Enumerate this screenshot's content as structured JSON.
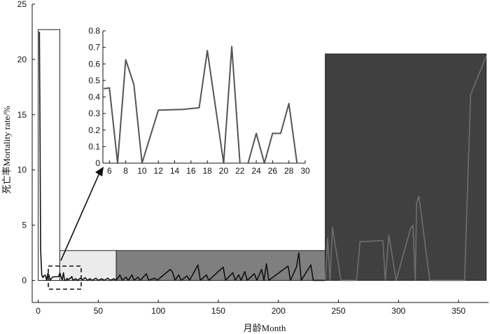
{
  "chart_data": [
    {
      "type": "line",
      "xlabel": "月龄Month",
      "ylabel": "死亡率Mortality rate/%",
      "xlim": [
        -5,
        375
      ],
      "ylim": [
        -2,
        25
      ],
      "xticks": [
        0,
        50,
        100,
        150,
        200,
        250,
        300,
        350
      ],
      "yticks": [
        0,
        5,
        10,
        15,
        20,
        25
      ],
      "colors": {
        "line": "#111111",
        "region1_fill": "#ffffff",
        "region2_fill": "#ebebeb",
        "region3_fill": "#7f7f7f",
        "region4_fill": "#404040",
        "region4_line": "#6e6e6e"
      },
      "regions": [
        {
          "x0": 0,
          "x1": 18,
          "top": 22.7,
          "style": "outline"
        },
        {
          "x0": 18,
          "x1": 65,
          "top": 2.7,
          "style": "light-gray"
        },
        {
          "x0": 65,
          "x1": 239,
          "top": 2.7,
          "style": "mid-gray"
        },
        {
          "x0": 239,
          "x1": 373,
          "top": 20.5,
          "style": "dark-gray"
        }
      ],
      "series": [
        {
          "points": [
            [
              1,
              22.5
            ],
            [
              1.5,
              12.8
            ],
            [
              2,
              2.8
            ],
            [
              3,
              0.45
            ],
            [
              4,
              0.25
            ],
            [
              5,
              0.45
            ],
            [
              6,
              0.45
            ],
            [
              7,
              0.0
            ],
            [
              8,
              0.62
            ],
            [
              9,
              0.47
            ],
            [
              10,
              0.0
            ],
            [
              12,
              0.32
            ],
            [
              16,
              0.33
            ],
            [
              17,
              0.34
            ],
            [
              18,
              0.68
            ],
            [
              20,
              0.0
            ],
            [
              21,
              0.7
            ],
            [
              22,
              0.0
            ],
            [
              23,
              0.0
            ],
            [
              24,
              0.18
            ],
            [
              25,
              0.0
            ],
            [
              26,
              0.18
            ],
            [
              27,
              0.18
            ],
            [
              28,
              0.36
            ],
            [
              29,
              0.0
            ],
            [
              31,
              0.15
            ],
            [
              33,
              0.0
            ],
            [
              35,
              0.2
            ],
            [
              37,
              0.05
            ],
            [
              39,
              0.25
            ],
            [
              41,
              0.0
            ],
            [
              43,
              0.15
            ],
            [
              45,
              0.0
            ],
            [
              48,
              0.2
            ],
            [
              50,
              0.0
            ],
            [
              53,
              0.15
            ],
            [
              55,
              0.0
            ],
            [
              58,
              0.2
            ],
            [
              60,
              0.0
            ],
            [
              63,
              0.15
            ],
            [
              65,
              0.0
            ],
            [
              68,
              0.5
            ],
            [
              70,
              0.0
            ],
            [
              73,
              0.3
            ],
            [
              75,
              0.0
            ],
            [
              78,
              0.5
            ],
            [
              80,
              0.0
            ],
            [
              83,
              0.3
            ],
            [
              85,
              0.0
            ],
            [
              90,
              0.6
            ],
            [
              92,
              0.0
            ],
            [
              97,
              0.2
            ],
            [
              99,
              0.0
            ],
            [
              110,
              1.0
            ],
            [
              112,
              0.7
            ],
            [
              114,
              0.0
            ],
            [
              117,
              0.5
            ],
            [
              119,
              0.0
            ],
            [
              124,
              0.4
            ],
            [
              126,
              0.0
            ],
            [
              133,
              1.4
            ],
            [
              135,
              0.0
            ],
            [
              140,
              0.5
            ],
            [
              142,
              0.0
            ],
            [
              154,
              1.2
            ],
            [
              156,
              0.0
            ],
            [
              162,
              0.7
            ],
            [
              164,
              0.0
            ],
            [
              167,
              0.5
            ],
            [
              169,
              0.0
            ],
            [
              172,
              0.8
            ],
            [
              174,
              0.0
            ],
            [
              180,
              0.6
            ],
            [
              182,
              0.0
            ],
            [
              186,
              1.0
            ],
            [
              188,
              0.0
            ],
            [
              190,
              1.5
            ],
            [
              192,
              0.0
            ],
            [
              208,
              1.3
            ],
            [
              210,
              0.0
            ],
            [
              215,
              1.2
            ],
            [
              217,
              2.5
            ],
            [
              219,
              0.0
            ],
            [
              227,
              1.4
            ],
            [
              229,
              0.0
            ],
            [
              237,
              0.0
            ],
            [
              239,
              0.0
            ]
          ]
        }
      ],
      "region4_points": [
        [
          239,
          0.0
        ],
        [
          241,
          3.8
        ],
        [
          243,
          0.0
        ],
        [
          245,
          4.8
        ],
        [
          252,
          0.0
        ],
        [
          265,
          0.0
        ],
        [
          268,
          3.5
        ],
        [
          287,
          3.6
        ],
        [
          289,
          0.0
        ],
        [
          292,
          4.1
        ],
        [
          298,
          0.0
        ],
        [
          310,
          4.7
        ],
        [
          312,
          5.0
        ],
        [
          314,
          0.0
        ],
        [
          315,
          7.0
        ],
        [
          317,
          7.6
        ],
        [
          326,
          0.0
        ],
        [
          355,
          0.0
        ],
        [
          360,
          16.8
        ],
        [
          373,
          20.3
        ]
      ],
      "inset": {
        "type": "line",
        "xlim": [
          5.2,
          30
        ],
        "ylim": [
          0,
          0.8
        ],
        "xticks": [
          6,
          8,
          10,
          12,
          14,
          16,
          18,
          20,
          22,
          24,
          26,
          28,
          30
        ],
        "yticks": [
          0,
          0.1,
          0.2,
          0.3,
          0.4,
          0.5,
          0.6,
          0.7,
          0.8
        ],
        "segments": [
          [
            [
              5.3,
              0.45
            ],
            [
              6.0,
              0.455
            ],
            [
              7.0,
              0.0
            ],
            [
              8.0,
              0.625
            ],
            [
              9.0,
              0.475
            ],
            [
              10.0,
              0.0
            ],
            [
              12.0,
              0.32
            ],
            [
              15.0,
              0.325
            ],
            [
              17.0,
              0.335
            ],
            [
              18.0,
              0.68
            ],
            [
              20.0,
              0.0
            ],
            [
              21.0,
              0.705
            ],
            [
              22.0,
              0.0
            ]
          ],
          [
            [
              23.0,
              0.0
            ],
            [
              24.0,
              0.18
            ],
            [
              25.0,
              0.0
            ],
            [
              26.0,
              0.18
            ],
            [
              27.0,
              0.18
            ],
            [
              28.0,
              0.36
            ],
            [
              29.0,
              0.0
            ]
          ]
        ]
      }
    }
  ]
}
